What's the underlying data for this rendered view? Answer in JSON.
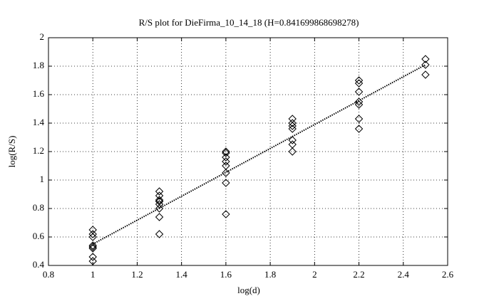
{
  "chart_data": {
    "type": "scatter",
    "title": "R/S plot for DieFirma_10_14_18 (H=0.841699868698278)",
    "x_label": "log(d)",
    "y_label": "log(R/S)",
    "x": [
      1,
      1,
      1,
      1,
      1,
      1,
      1,
      1,
      1.3,
      1.3,
      1.3,
      1.3,
      1.3,
      1.3,
      1.3,
      1.3,
      1.3,
      1.6,
      1.6,
      1.6,
      1.6,
      1.6,
      1.6,
      1.6,
      1.6,
      1.9,
      1.9,
      1.9,
      1.9,
      1.9,
      1.9,
      1.9,
      2.2,
      2.2,
      2.2,
      2.2,
      2.2,
      2.2,
      2.2,
      2.5,
      2.5,
      2.5
    ],
    "y": [
      0.65,
      0.62,
      0.6,
      0.54,
      0.53,
      0.52,
      0.46,
      0.43,
      0.92,
      0.89,
      0.86,
      0.85,
      0.85,
      0.83,
      0.8,
      0.74,
      0.62,
      1.2,
      1.19,
      1.16,
      1.13,
      1.1,
      1.05,
      0.98,
      0.76,
      1.43,
      1.4,
      1.38,
      1.36,
      1.28,
      1.25,
      1.2,
      1.7,
      1.68,
      1.62,
      1.55,
      1.53,
      1.43,
      1.36,
      1.85,
      1.81,
      1.74
    ],
    "color": "#000000",
    "fit": {
      "x": [
        1,
        2.5
      ],
      "y": [
        0.55,
        1.81
      ]
    },
    "xlim": [
      0.8,
      2.6
    ],
    "xticks": [
      0.8,
      1,
      1.2,
      1.4,
      1.6,
      1.8,
      2,
      2.2,
      2.4,
      2.6
    ],
    "ylim": [
      0.4,
      2
    ],
    "yticks": [
      0.4,
      0.6,
      0.8,
      1,
      1.2,
      1.4,
      1.6,
      1.8,
      2
    ],
    "grid": true
  }
}
